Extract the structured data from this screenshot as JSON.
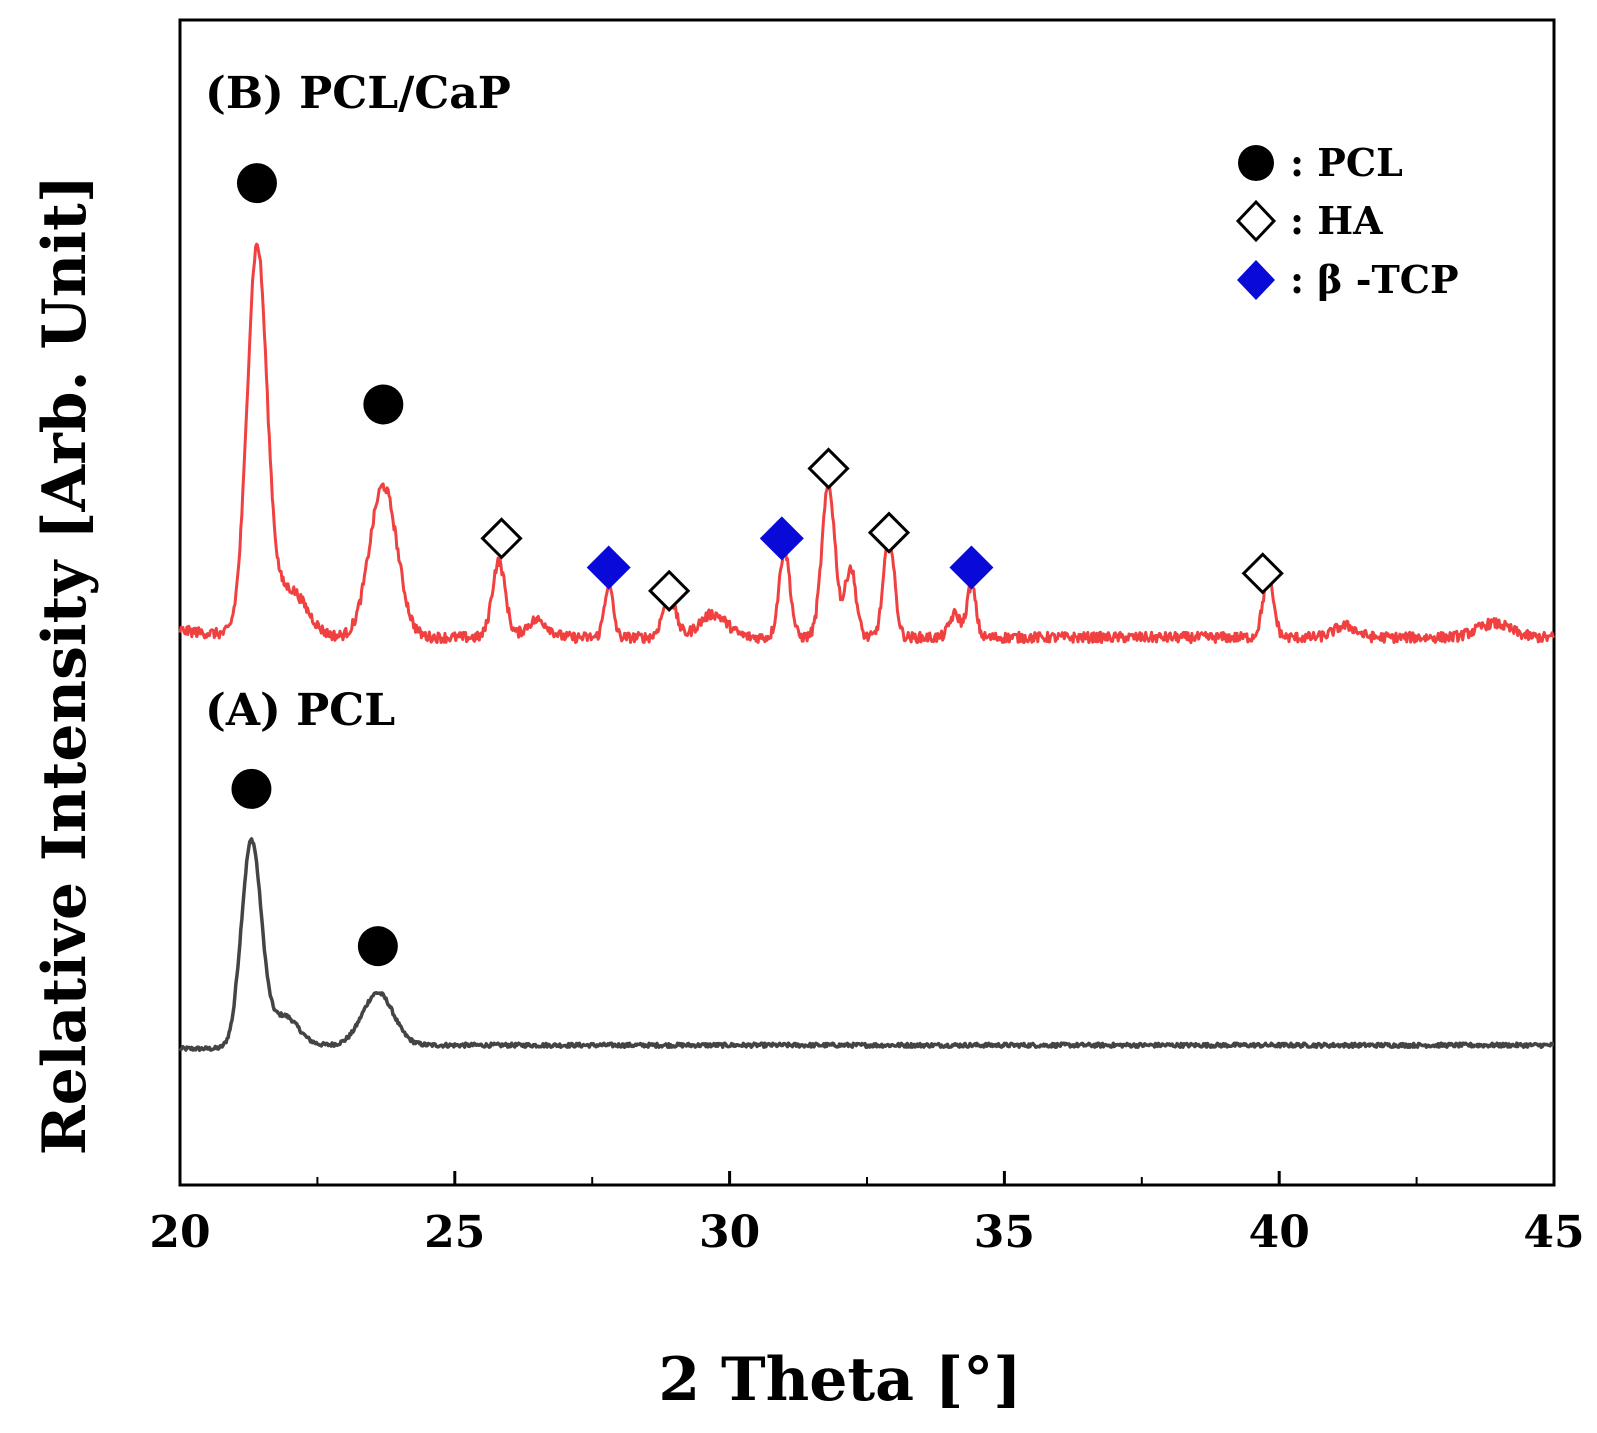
{
  "chart_data": {
    "type": "line",
    "title": "",
    "xlabel": "2 Theta [°]",
    "ylabel": "Relative Intensity [Arb. Unit]",
    "xlim": [
      20,
      45
    ],
    "ylim": [
      0,
      100
    ],
    "x_ticks": [
      20,
      25,
      30,
      35,
      40,
      45
    ],
    "x_tick_labels": [
      "20",
      "25",
      "30",
      "35",
      "40",
      "45"
    ],
    "y_ticks_shown": false,
    "grid": false,
    "series": [
      {
        "name": "(A) PCL",
        "label": "(A) PCL",
        "color": "#444444",
        "baseline": 12,
        "peaks": [
          {
            "pos": 21.3,
            "height": 17.5,
            "width": 0.18
          },
          {
            "pos": 21.9,
            "height": 2.5,
            "width": 0.25
          },
          {
            "pos": 23.6,
            "height": 4.5,
            "width": 0.28
          }
        ],
        "markers": [
          {
            "type": "PCL",
            "x": 21.3,
            "y": 34
          },
          {
            "type": "PCL",
            "x": 23.6,
            "y": 20.5
          }
        ]
      },
      {
        "name": "(B) PCL/CaP",
        "label": "(B) PCL/CaP",
        "color": "#f04040",
        "baseline": 47,
        "peaks": [
          {
            "pos": 21.4,
            "height": 33,
            "width": 0.18
          },
          {
            "pos": 22.0,
            "height": 4,
            "width": 0.3
          },
          {
            "pos": 23.7,
            "height": 13,
            "width": 0.25
          },
          {
            "pos": 25.8,
            "height": 6.5,
            "width": 0.12
          },
          {
            "pos": 26.5,
            "height": 1.5,
            "width": 0.2
          },
          {
            "pos": 27.8,
            "height": 4.5,
            "width": 0.08
          },
          {
            "pos": 28.9,
            "height": 3.5,
            "width": 0.12
          },
          {
            "pos": 29.7,
            "height": 2,
            "width": 0.25
          },
          {
            "pos": 31.0,
            "height": 7.5,
            "width": 0.1
          },
          {
            "pos": 31.8,
            "height": 13,
            "width": 0.12
          },
          {
            "pos": 32.2,
            "height": 6,
            "width": 0.1
          },
          {
            "pos": 32.9,
            "height": 8.5,
            "width": 0.1
          },
          {
            "pos": 34.1,
            "height": 2,
            "width": 0.1
          },
          {
            "pos": 34.4,
            "height": 4.5,
            "width": 0.08
          },
          {
            "pos": 39.8,
            "height": 5,
            "width": 0.1
          },
          {
            "pos": 41.2,
            "height": 1,
            "width": 0.2
          },
          {
            "pos": 43.9,
            "height": 1.2,
            "width": 0.3
          }
        ],
        "markers": [
          {
            "type": "PCL",
            "x": 21.4,
            "y": 86
          },
          {
            "type": "PCL",
            "x": 23.7,
            "y": 67
          },
          {
            "type": "HA",
            "x": 25.85,
            "y": 55.5
          },
          {
            "type": "beta-TCP",
            "x": 27.8,
            "y": 53
          },
          {
            "type": "HA",
            "x": 28.9,
            "y": 51
          },
          {
            "type": "beta-TCP",
            "x": 30.95,
            "y": 55.5
          },
          {
            "type": "HA",
            "x": 31.8,
            "y": 61.5
          },
          {
            "type": "HA",
            "x": 32.9,
            "y": 56
          },
          {
            "type": "beta-TCP",
            "x": 34.4,
            "y": 53
          },
          {
            "type": "HA",
            "x": 39.7,
            "y": 52.5
          }
        ]
      }
    ],
    "legend": {
      "placement": "top-right",
      "entries": [
        {
          "symbol": "filled-circle",
          "label": ": PCL"
        },
        {
          "symbol": "open-diamond",
          "label": ": HA"
        },
        {
          "symbol": "blue-diamond",
          "label": ": β -TCP"
        }
      ]
    }
  },
  "colors": {
    "pcl_marker": "#000000",
    "ha_marker": "#ffffff",
    "tcp_marker": "#0a0ad8",
    "axis": "#000000"
  }
}
